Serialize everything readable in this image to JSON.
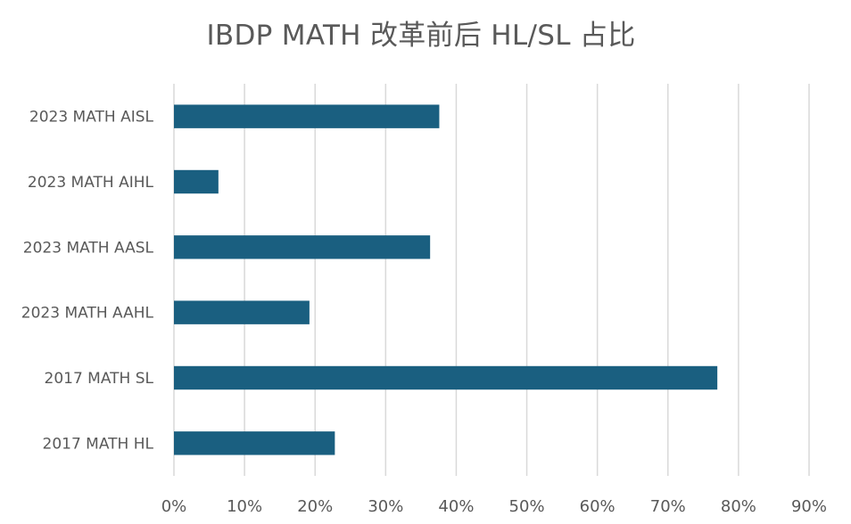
{
  "chart_data": {
    "type": "bar",
    "orientation": "horizontal",
    "title": "IBDP MATH 改革前后 HL/SL 占比",
    "categories": [
      "2023 MATH AISL",
      "2023 MATH AIHL",
      "2023 MATH AASL",
      "2023 MATH AAHL",
      "2017 MATH SL",
      "2017 MATH HL"
    ],
    "values": [
      37.6,
      6.3,
      36.3,
      19.2,
      77.0,
      22.8
    ],
    "value_unit": "%",
    "xlim": [
      0,
      90
    ],
    "x_ticks": [
      "0%",
      "10%",
      "20%",
      "30%",
      "40%",
      "50%",
      "60%",
      "70%",
      "80%",
      "90%"
    ],
    "xlabel": "",
    "ylabel": "",
    "grid": "vertical",
    "legend": "none",
    "bar_color": "#1a5f80"
  }
}
